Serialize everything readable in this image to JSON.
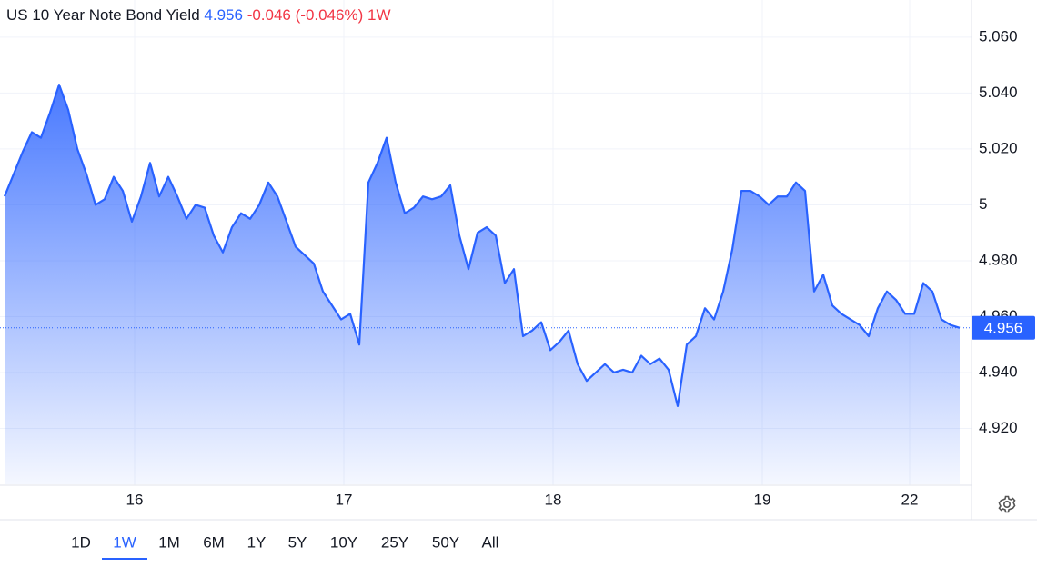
{
  "chart_data": {
    "type": "area",
    "title": "US 10 Year Note Bond Yield",
    "last": 4.956,
    "change": "-0.046",
    "change_pct": "(-0.046%)",
    "period": "1W",
    "color": "#2962ff",
    "x": [
      0,
      1,
      2,
      3,
      4,
      5,
      6,
      7,
      8,
      9,
      10,
      11,
      12,
      13,
      14,
      15,
      16,
      17,
      18,
      19,
      20,
      21,
      22,
      23,
      24,
      25,
      26,
      27,
      28,
      29,
      30,
      31,
      32,
      33,
      34,
      35,
      36,
      37,
      38,
      39,
      40,
      41,
      42,
      43,
      44,
      45,
      46,
      47,
      48,
      49,
      50,
      51,
      52,
      53,
      54,
      55,
      56,
      57,
      58,
      59,
      60,
      61,
      62,
      63,
      64,
      65,
      66,
      67,
      68,
      69,
      70,
      71,
      72,
      73,
      74,
      75,
      76,
      77,
      78,
      79,
      80,
      81,
      82,
      83,
      84,
      85,
      86,
      87,
      88,
      89,
      90,
      91,
      92,
      93,
      94,
      95,
      96,
      97,
      98,
      99,
      100,
      101,
      102,
      103,
      104,
      105
    ],
    "values": [
      5.003,
      5.011,
      5.019,
      5.026,
      5.024,
      5.033,
      5.043,
      5.034,
      5.02,
      5.011,
      5.0,
      5.002,
      5.01,
      5.005,
      4.994,
      5.003,
      5.015,
      5.003,
      5.01,
      5.003,
      4.995,
      5.0,
      4.999,
      4.989,
      4.983,
      4.992,
      4.997,
      4.995,
      5.0,
      5.008,
      5.003,
      4.994,
      4.985,
      4.982,
      4.979,
      4.969,
      4.964,
      4.959,
      4.961,
      4.95,
      5.008,
      5.015,
      5.024,
      5.008,
      4.997,
      4.999,
      5.003,
      5.002,
      5.003,
      5.007,
      4.989,
      4.977,
      4.99,
      4.992,
      4.989,
      4.972,
      4.977,
      4.953,
      4.955,
      4.958,
      4.948,
      4.951,
      4.955,
      4.943,
      4.937,
      4.94,
      4.943,
      4.94,
      4.941,
      4.94,
      4.946,
      4.943,
      4.945,
      4.941,
      4.928,
      4.95,
      4.953,
      4.963,
      4.959,
      4.969,
      4.984,
      5.005,
      5.005,
      5.003,
      5.0,
      5.003,
      5.003,
      5.008,
      5.005,
      4.969,
      4.975,
      4.964,
      4.961,
      4.959,
      4.957,
      4.953,
      4.963,
      4.969,
      4.966,
      4.961,
      4.961,
      4.972,
      4.969,
      4.959,
      4.957,
      4.956
    ],
    "xlim": [
      0,
      106
    ],
    "xticks": [
      {
        "value": 14.3,
        "label": "16"
      },
      {
        "value": 37.3,
        "label": "17"
      },
      {
        "value": 60.3,
        "label": "18"
      },
      {
        "value": 83.3,
        "label": "19"
      },
      {
        "value": 99.5,
        "label": "22"
      }
    ],
    "ylim": [
      4.9,
      5.0733
    ],
    "yticks": [
      {
        "value": 4.92,
        "label": "4.920"
      },
      {
        "value": 4.94,
        "label": "4.940"
      },
      {
        "value": 4.96,
        "label": "4.960"
      },
      {
        "value": 4.98,
        "label": "4.980"
      },
      5,
      {
        "value": 5.02,
        "label": "5.020"
      },
      {
        "value": 5.04,
        "label": "5.040"
      },
      {
        "value": 5.06,
        "label": "5.060"
      }
    ],
    "grid": true,
    "ranges": [
      "1D",
      "1W",
      "1M",
      "6M",
      "1Y",
      "5Y",
      "10Y",
      "25Y",
      "50Y",
      "All"
    ]
  }
}
